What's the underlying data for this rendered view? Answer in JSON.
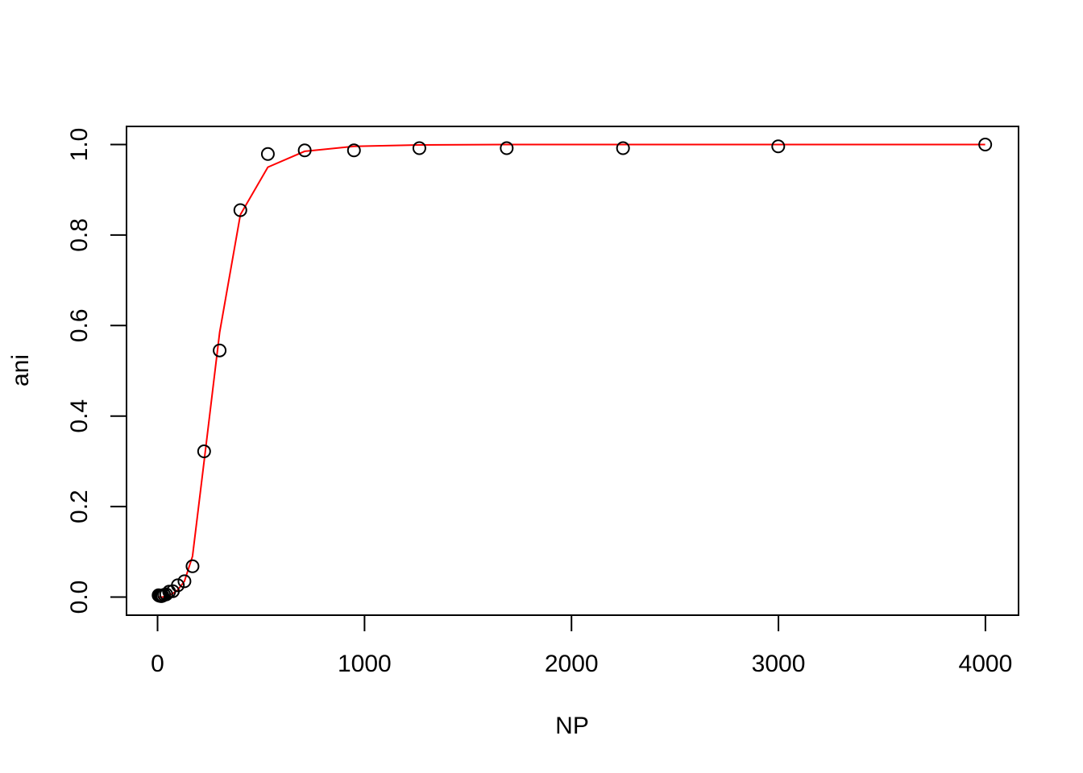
{
  "chart_data": {
    "type": "scatter",
    "title": "",
    "xlabel": "NP",
    "ylabel": "ani",
    "xlim": [
      -150,
      4160
    ],
    "ylim": [
      -0.04,
      1.04
    ],
    "x_ticks": [
      0,
      1000,
      2000,
      3000,
      4000
    ],
    "x_tick_labels": [
      "0",
      "1000",
      "2000",
      "3000",
      "4000"
    ],
    "y_ticks": [
      0,
      0.2,
      0.4,
      0.6,
      0.8,
      1.0
    ],
    "y_tick_labels": [
      "0.0",
      "0.2",
      "0.4",
      "0.6",
      "0.8",
      "1.0"
    ],
    "grid": false,
    "legend": "none",
    "points": {
      "x": [
        5,
        9,
        13,
        18,
        24,
        32,
        42,
        56,
        74,
        98,
        130,
        169,
        225,
        300,
        400,
        533,
        711,
        949,
        1265,
        1687,
        2249,
        2999,
        3999
      ],
      "y": [
        0.004,
        0.003,
        0.003,
        0.002,
        0.003,
        0.005,
        0.006,
        0.012,
        0.013,
        0.026,
        0.035,
        0.068,
        0.322,
        0.545,
        0.855,
        0.979,
        0.987,
        0.987,
        0.992,
        0.992,
        0.992,
        0.996,
        1.0
      ]
    },
    "fit_line": {
      "color": "#ff0000",
      "x": [
        5,
        9,
        13,
        18,
        24,
        32,
        42,
        56,
        74,
        98,
        130,
        169,
        225,
        300,
        400,
        533,
        711,
        949,
        1265,
        1687,
        2249,
        2999,
        3999
      ],
      "y": [
        0.0,
        0.0,
        0.0,
        0.0,
        0.0,
        0.001,
        0.002,
        0.004,
        0.008,
        0.016,
        0.035,
        0.09,
        0.3,
        0.585,
        0.845,
        0.95,
        0.985,
        0.996,
        0.999,
        1.0,
        1.0,
        1.0,
        1.0
      ]
    }
  }
}
